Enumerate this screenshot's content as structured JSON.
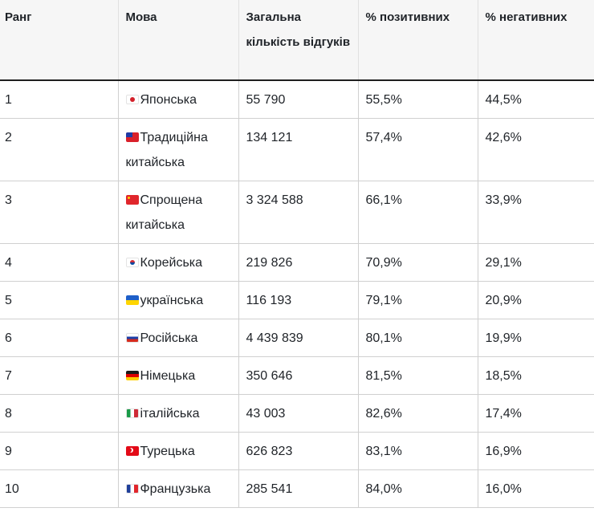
{
  "table": {
    "headers": {
      "rank": "Ранг",
      "language": "Мова",
      "total": "Загальна кількість відгуків",
      "positive": "% позитивних",
      "negative": "% негативних"
    },
    "rows": [
      {
        "rank": "1",
        "flag": "flag-japan-icon",
        "language": "Японська",
        "total": "55 790",
        "positive": "55,5%",
        "negative": "44,5%"
      },
      {
        "rank": "2",
        "flag": "flag-taiwan-icon",
        "language": "Традиційна китайська",
        "total": "134 121",
        "positive": "57,4%",
        "negative": "42,6%"
      },
      {
        "rank": "3",
        "flag": "flag-china-icon",
        "language": "Спрощена китайська",
        "total": "3 324 588",
        "positive": "66,1%",
        "negative": "33,9%"
      },
      {
        "rank": "4",
        "flag": "flag-south-korea-icon",
        "language": "Корейська",
        "total": "219 826",
        "positive": "70,9%",
        "negative": "29,1%"
      },
      {
        "rank": "5",
        "flag": "flag-ukraine-icon",
        "language": "українська",
        "total": "116 193",
        "positive": "79,1%",
        "negative": "20,9%"
      },
      {
        "rank": "6",
        "flag": "flag-russia-icon",
        "language": "Російська",
        "total": "4 439 839",
        "positive": "80,1%",
        "negative": "19,9%"
      },
      {
        "rank": "7",
        "flag": "flag-germany-icon",
        "language": "Німецька",
        "total": "350 646",
        "positive": "81,5%",
        "negative": "18,5%"
      },
      {
        "rank": "8",
        "flag": "flag-italy-icon",
        "language": "італійська",
        "total": "43 003",
        "positive": "82,6%",
        "negative": "17,4%"
      },
      {
        "rank": "9",
        "flag": "flag-turkey-icon",
        "language": "Турецька",
        "total": "626 823",
        "positive": "83,1%",
        "negative": "16,9%"
      },
      {
        "rank": "10",
        "flag": "flag-france-icon",
        "language": "Французька",
        "total": "285 541",
        "positive": "84,0%",
        "negative": "16,0%"
      }
    ]
  }
}
